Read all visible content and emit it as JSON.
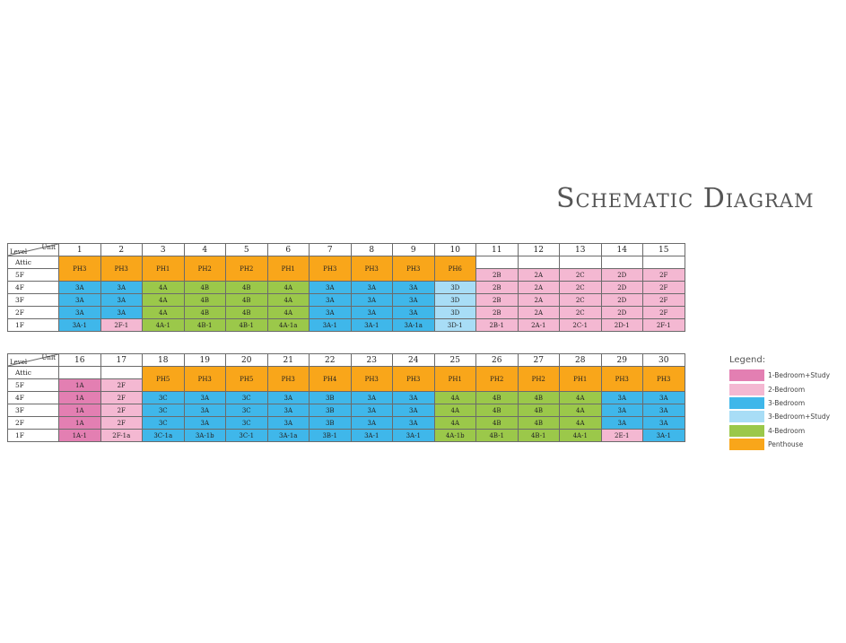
{
  "title": "Schematic Diagram",
  "colors": {
    "1BS": "#e37fb2",
    "2B": "#f4b8d2",
    "3B": "#3fb7ea",
    "3BS": "#a8ddf6",
    "4B": "#9bc84a",
    "PH": "#f9a61a",
    "blank": "#ffffff"
  },
  "header": {
    "unit": "Unit",
    "level": "Level"
  },
  "legend": {
    "title": "Legend:",
    "items": [
      {
        "type": "1BS",
        "label": "1-Bedroom+Study"
      },
      {
        "type": "2B",
        "label": "2-Bedroom"
      },
      {
        "type": "3B",
        "label": "3-Bedroom"
      },
      {
        "type": "3BS",
        "label": "3-Bedroom+Study"
      },
      {
        "type": "4B",
        "label": "4-Bedroom"
      },
      {
        "type": "PH",
        "label": "Penthouse"
      }
    ]
  },
  "table1": {
    "units": [
      "1",
      "2",
      "3",
      "4",
      "5",
      "6",
      "7",
      "8",
      "9",
      "10",
      "11",
      "12",
      "13",
      "14",
      "15"
    ],
    "levels": [
      "Attic",
      "5F",
      "4F",
      "3F",
      "2F",
      "1F"
    ],
    "penthouses": [
      {
        "label": "PH3",
        "type": "PH"
      },
      {
        "label": "PH3",
        "type": "PH"
      },
      {
        "label": "PH1",
        "type": "PH"
      },
      {
        "label": "PH2",
        "type": "PH"
      },
      {
        "label": "PH2",
        "type": "PH"
      },
      {
        "label": "PH1",
        "type": "PH"
      },
      {
        "label": "PH3",
        "type": "PH"
      },
      {
        "label": "PH3",
        "type": "PH"
      },
      {
        "label": "PH3",
        "type": "PH"
      },
      {
        "label": "PH6",
        "type": "PH"
      },
      null,
      null,
      null,
      null,
      null
    ],
    "fiveF": [
      null,
      null,
      null,
      null,
      null,
      null,
      null,
      null,
      null,
      null,
      {
        "label": "2B",
        "type": "2B"
      },
      {
        "label": "2A",
        "type": "2B"
      },
      {
        "label": "2C",
        "type": "2B"
      },
      {
        "label": "2D",
        "type": "2B"
      },
      {
        "label": "2F",
        "type": "2B"
      }
    ],
    "floors": [
      [
        {
          "label": "3A",
          "type": "3B"
        },
        {
          "label": "3A",
          "type": "3B"
        },
        {
          "label": "4A",
          "type": "4B"
        },
        {
          "label": "4B",
          "type": "4B"
        },
        {
          "label": "4B",
          "type": "4B"
        },
        {
          "label": "4A",
          "type": "4B"
        },
        {
          "label": "3A",
          "type": "3B"
        },
        {
          "label": "3A",
          "type": "3B"
        },
        {
          "label": "3A",
          "type": "3B"
        },
        {
          "label": "3D",
          "type": "3BS"
        },
        {
          "label": "2B",
          "type": "2B"
        },
        {
          "label": "2A",
          "type": "2B"
        },
        {
          "label": "2C",
          "type": "2B"
        },
        {
          "label": "2D",
          "type": "2B"
        },
        {
          "label": "2F",
          "type": "2B"
        }
      ],
      [
        {
          "label": "3A",
          "type": "3B"
        },
        {
          "label": "3A",
          "type": "3B"
        },
        {
          "label": "4A",
          "type": "4B"
        },
        {
          "label": "4B",
          "type": "4B"
        },
        {
          "label": "4B",
          "type": "4B"
        },
        {
          "label": "4A",
          "type": "4B"
        },
        {
          "label": "3A",
          "type": "3B"
        },
        {
          "label": "3A",
          "type": "3B"
        },
        {
          "label": "3A",
          "type": "3B"
        },
        {
          "label": "3D",
          "type": "3BS"
        },
        {
          "label": "2B",
          "type": "2B"
        },
        {
          "label": "2A",
          "type": "2B"
        },
        {
          "label": "2C",
          "type": "2B"
        },
        {
          "label": "2D",
          "type": "2B"
        },
        {
          "label": "2F",
          "type": "2B"
        }
      ],
      [
        {
          "label": "3A",
          "type": "3B"
        },
        {
          "label": "3A",
          "type": "3B"
        },
        {
          "label": "4A",
          "type": "4B"
        },
        {
          "label": "4B",
          "type": "4B"
        },
        {
          "label": "4B",
          "type": "4B"
        },
        {
          "label": "4A",
          "type": "4B"
        },
        {
          "label": "3A",
          "type": "3B"
        },
        {
          "label": "3A",
          "type": "3B"
        },
        {
          "label": "3A",
          "type": "3B"
        },
        {
          "label": "3D",
          "type": "3BS"
        },
        {
          "label": "2B",
          "type": "2B"
        },
        {
          "label": "2A",
          "type": "2B"
        },
        {
          "label": "2C",
          "type": "2B"
        },
        {
          "label": "2D",
          "type": "2B"
        },
        {
          "label": "2F",
          "type": "2B"
        }
      ],
      [
        {
          "label": "3A-1",
          "type": "3B"
        },
        {
          "label": "2F-1",
          "type": "2B"
        },
        {
          "label": "4A-1",
          "type": "4B"
        },
        {
          "label": "4B-1",
          "type": "4B"
        },
        {
          "label": "4B-1",
          "type": "4B"
        },
        {
          "label": "4A-1a",
          "type": "4B"
        },
        {
          "label": "3A-1",
          "type": "3B"
        },
        {
          "label": "3A-1",
          "type": "3B"
        },
        {
          "label": "3A-1a",
          "type": "3B"
        },
        {
          "label": "3D-1",
          "type": "3BS"
        },
        {
          "label": "2B-1",
          "type": "2B"
        },
        {
          "label": "2A-1",
          "type": "2B"
        },
        {
          "label": "2C-1",
          "type": "2B"
        },
        {
          "label": "2D-1",
          "type": "2B"
        },
        {
          "label": "2F-1",
          "type": "2B"
        }
      ]
    ]
  },
  "table2": {
    "units": [
      "16",
      "17",
      "18",
      "19",
      "20",
      "21",
      "22",
      "23",
      "24",
      "25",
      "26",
      "27",
      "28",
      "29",
      "30"
    ],
    "levels": [
      "Attic",
      "5F",
      "4F",
      "3F",
      "2F",
      "1F"
    ],
    "penthouses": [
      null,
      null,
      {
        "label": "PH5",
        "type": "PH"
      },
      {
        "label": "PH3",
        "type": "PH"
      },
      {
        "label": "PH5",
        "type": "PH"
      },
      {
        "label": "PH3",
        "type": "PH"
      },
      {
        "label": "PH4",
        "type": "PH"
      },
      {
        "label": "PH3",
        "type": "PH"
      },
      {
        "label": "PH3",
        "type": "PH"
      },
      {
        "label": "PH1",
        "type": "PH"
      },
      {
        "label": "PH2",
        "type": "PH"
      },
      {
        "label": "PH2",
        "type": "PH"
      },
      {
        "label": "PH1",
        "type": "PH"
      },
      {
        "label": "PH3",
        "type": "PH"
      },
      {
        "label": "PH3",
        "type": "PH"
      }
    ],
    "fiveF": [
      {
        "label": "1A",
        "type": "1BS"
      },
      {
        "label": "2F",
        "type": "2B"
      },
      null,
      null,
      null,
      null,
      null,
      null,
      null,
      null,
      null,
      null,
      null,
      null,
      null
    ],
    "floors": [
      [
        {
          "label": "1A",
          "type": "1BS"
        },
        {
          "label": "2F",
          "type": "2B"
        },
        {
          "label": "3C",
          "type": "3B"
        },
        {
          "label": "3A",
          "type": "3B"
        },
        {
          "label": "3C",
          "type": "3B"
        },
        {
          "label": "3A",
          "type": "3B"
        },
        {
          "label": "3B",
          "type": "3B"
        },
        {
          "label": "3A",
          "type": "3B"
        },
        {
          "label": "3A",
          "type": "3B"
        },
        {
          "label": "4A",
          "type": "4B"
        },
        {
          "label": "4B",
          "type": "4B"
        },
        {
          "label": "4B",
          "type": "4B"
        },
        {
          "label": "4A",
          "type": "4B"
        },
        {
          "label": "3A",
          "type": "3B"
        },
        {
          "label": "3A",
          "type": "3B"
        }
      ],
      [
        {
          "label": "1A",
          "type": "1BS"
        },
        {
          "label": "2F",
          "type": "2B"
        },
        {
          "label": "3C",
          "type": "3B"
        },
        {
          "label": "3A",
          "type": "3B"
        },
        {
          "label": "3C",
          "type": "3B"
        },
        {
          "label": "3A",
          "type": "3B"
        },
        {
          "label": "3B",
          "type": "3B"
        },
        {
          "label": "3A",
          "type": "3B"
        },
        {
          "label": "3A",
          "type": "3B"
        },
        {
          "label": "4A",
          "type": "4B"
        },
        {
          "label": "4B",
          "type": "4B"
        },
        {
          "label": "4B",
          "type": "4B"
        },
        {
          "label": "4A",
          "type": "4B"
        },
        {
          "label": "3A",
          "type": "3B"
        },
        {
          "label": "3A",
          "type": "3B"
        }
      ],
      [
        {
          "label": "1A",
          "type": "1BS"
        },
        {
          "label": "2F",
          "type": "2B"
        },
        {
          "label": "3C",
          "type": "3B"
        },
        {
          "label": "3A",
          "type": "3B"
        },
        {
          "label": "3C",
          "type": "3B"
        },
        {
          "label": "3A",
          "type": "3B"
        },
        {
          "label": "3B",
          "type": "3B"
        },
        {
          "label": "3A",
          "type": "3B"
        },
        {
          "label": "3A",
          "type": "3B"
        },
        {
          "label": "4A",
          "type": "4B"
        },
        {
          "label": "4B",
          "type": "4B"
        },
        {
          "label": "4B",
          "type": "4B"
        },
        {
          "label": "4A",
          "type": "4B"
        },
        {
          "label": "3A",
          "type": "3B"
        },
        {
          "label": "3A",
          "type": "3B"
        }
      ],
      [
        {
          "label": "1A-1",
          "type": "1BS"
        },
        {
          "label": "2F-1a",
          "type": "2B"
        },
        {
          "label": "3C-1a",
          "type": "3B"
        },
        {
          "label": "3A-1b",
          "type": "3B"
        },
        {
          "label": "3C-1",
          "type": "3B"
        },
        {
          "label": "3A-1a",
          "type": "3B"
        },
        {
          "label": "3B-1",
          "type": "3B"
        },
        {
          "label": "3A-1",
          "type": "3B"
        },
        {
          "label": "3A-1",
          "type": "3B"
        },
        {
          "label": "4A-1b",
          "type": "4B"
        },
        {
          "label": "4B-1",
          "type": "4B"
        },
        {
          "label": "4B-1",
          "type": "4B"
        },
        {
          "label": "4A-1",
          "type": "4B"
        },
        {
          "label": "2E-1",
          "type": "2B"
        },
        {
          "label": "3A-1",
          "type": "3B"
        }
      ]
    ]
  }
}
